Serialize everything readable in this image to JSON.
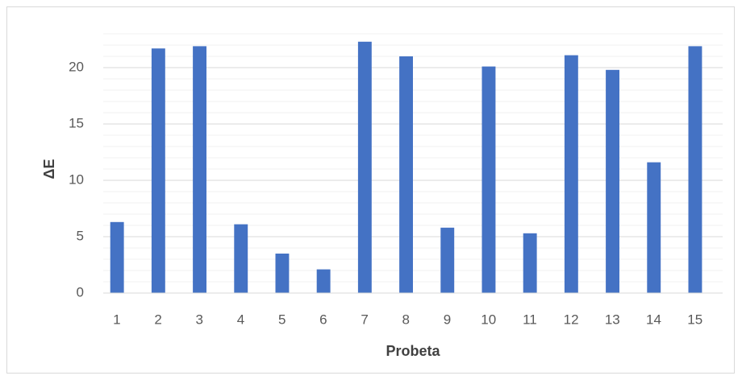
{
  "chart_data": {
    "type": "bar",
    "x_label": "Probeta",
    "y_label": "ΔE",
    "categories": [
      "1",
      "2",
      "3",
      "4",
      "5",
      "6",
      "7",
      "8",
      "9",
      "10",
      "11",
      "12",
      "13",
      "14",
      "15"
    ],
    "values": [
      6.3,
      21.7,
      21.9,
      6.1,
      3.5,
      2.1,
      22.3,
      21.0,
      5.8,
      20.1,
      5.3,
      21.1,
      19.8,
      11.6,
      21.9
    ],
    "color": "#4472c4",
    "ylim": [
      0,
      23
    ],
    "yticks": [
      0,
      5,
      10,
      15,
      20
    ],
    "grid": true,
    "minor_grid_step": 1
  }
}
